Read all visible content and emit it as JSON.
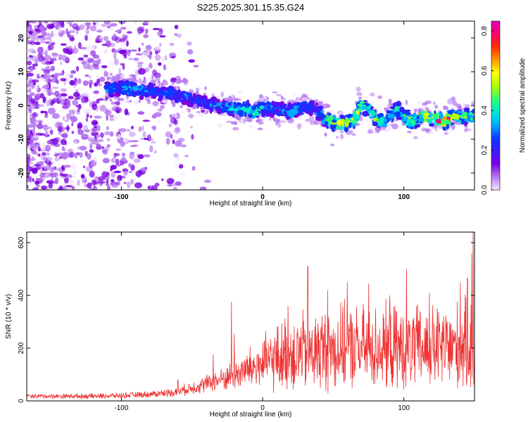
{
  "title": "S225.2025.301.15.35.G24",
  "chart_data": [
    {
      "type": "heatmap",
      "name": "spectrogram",
      "xlabel": "Height of straight line (km)",
      "ylabel": "Frequency (Hz)",
      "xlim": [
        -167,
        150
      ],
      "ylim": [
        -25,
        25
      ],
      "xticks": [
        -100,
        0,
        100
      ],
      "yticks": [
        -20,
        -10,
        0,
        10,
        20
      ],
      "colorbar": {
        "label": "Normalized spectral amplitude",
        "range": [
          0,
          0.85
        ],
        "ticks": [
          "0.0",
          "0.2",
          "0.4",
          "0.6",
          "0.8"
        ],
        "tick_values": [
          0,
          0.2,
          0.4,
          0.6,
          0.8
        ],
        "colors": [
          "#f4e6ff",
          "#b77bf0",
          "#7a00e0",
          "#3a1cff",
          "#0a3cff",
          "#00aaff",
          "#00e8d0",
          "#30ff70",
          "#b0ff00",
          "#ffff00",
          "#ff9a00",
          "#ff3000",
          "#ff0070",
          "#e000b0"
        ]
      },
      "ridge_x": [
        -108,
        -95,
        -85,
        -75,
        -65,
        -55,
        -45,
        -35,
        -25,
        -15,
        -5,
        0,
        10,
        20,
        30,
        40,
        45,
        55,
        60,
        65,
        70,
        75,
        80,
        85,
        90,
        95,
        100,
        105,
        110,
        115,
        120,
        125,
        130,
        135,
        140,
        148
      ],
      "ridge_y": [
        5,
        5,
        4.5,
        4,
        3.5,
        2.5,
        1,
        0,
        -0.5,
        -1,
        -2,
        -1,
        -1,
        -2,
        0,
        -2,
        -4,
        -5.5,
        -5,
        -4,
        0,
        -1,
        -4,
        -5,
        -3,
        -1,
        -3,
        -5,
        -4,
        -3,
        -3.5,
        -4.5,
        -4.5,
        -3,
        -3.5,
        -3
      ],
      "ridge_amp": [
        0.3,
        0.35,
        0.3,
        0.3,
        0.3,
        0.3,
        0.25,
        0.3,
        0.35,
        0.45,
        0.45,
        0.35,
        0.3,
        0.35,
        0.25,
        0.3,
        0.45,
        0.55,
        0.5,
        0.55,
        0.55,
        0.45,
        0.45,
        0.4,
        0.45,
        0.45,
        0.45,
        0.5,
        0.5,
        0.6,
        0.55,
        0.75,
        0.8,
        0.5,
        0.45,
        0.45
      ]
    },
    {
      "type": "line",
      "name": "snr",
      "xlabel": "Height of straight line (km)",
      "ylabel": "SNR (10 * v/v)",
      "xlim": [
        -167,
        150
      ],
      "ylim": [
        0,
        640
      ],
      "xticks": [
        -100,
        0,
        100
      ],
      "yticks": [
        0,
        200,
        400,
        600
      ],
      "color": "#ee3333",
      "envelope_x": [
        -167,
        -120,
        -100,
        -80,
        -60,
        -50,
        -40,
        -30,
        -20,
        -10,
        0,
        10,
        20,
        40,
        60,
        80,
        100,
        120,
        140,
        150
      ],
      "envelope_mean": [
        18,
        18,
        20,
        25,
        35,
        50,
        65,
        80,
        100,
        120,
        140,
        160,
        180,
        190,
        200,
        200,
        200,
        200,
        205,
        210
      ],
      "envelope_spread": [
        10,
        12,
        12,
        15,
        22,
        30,
        40,
        50,
        70,
        95,
        120,
        150,
        180,
        190,
        190,
        190,
        190,
        190,
        200,
        220
      ],
      "peak_x": [
        -60,
        -35,
        -22,
        -20,
        18,
        32,
        46,
        60,
        75,
        90,
        102,
        118,
        140,
        145,
        148,
        149
      ],
      "peak_y": [
        80,
        175,
        375,
        255,
        360,
        510,
        420,
        450,
        445,
        400,
        500,
        410,
        450,
        465,
        560,
        645
      ]
    }
  ]
}
